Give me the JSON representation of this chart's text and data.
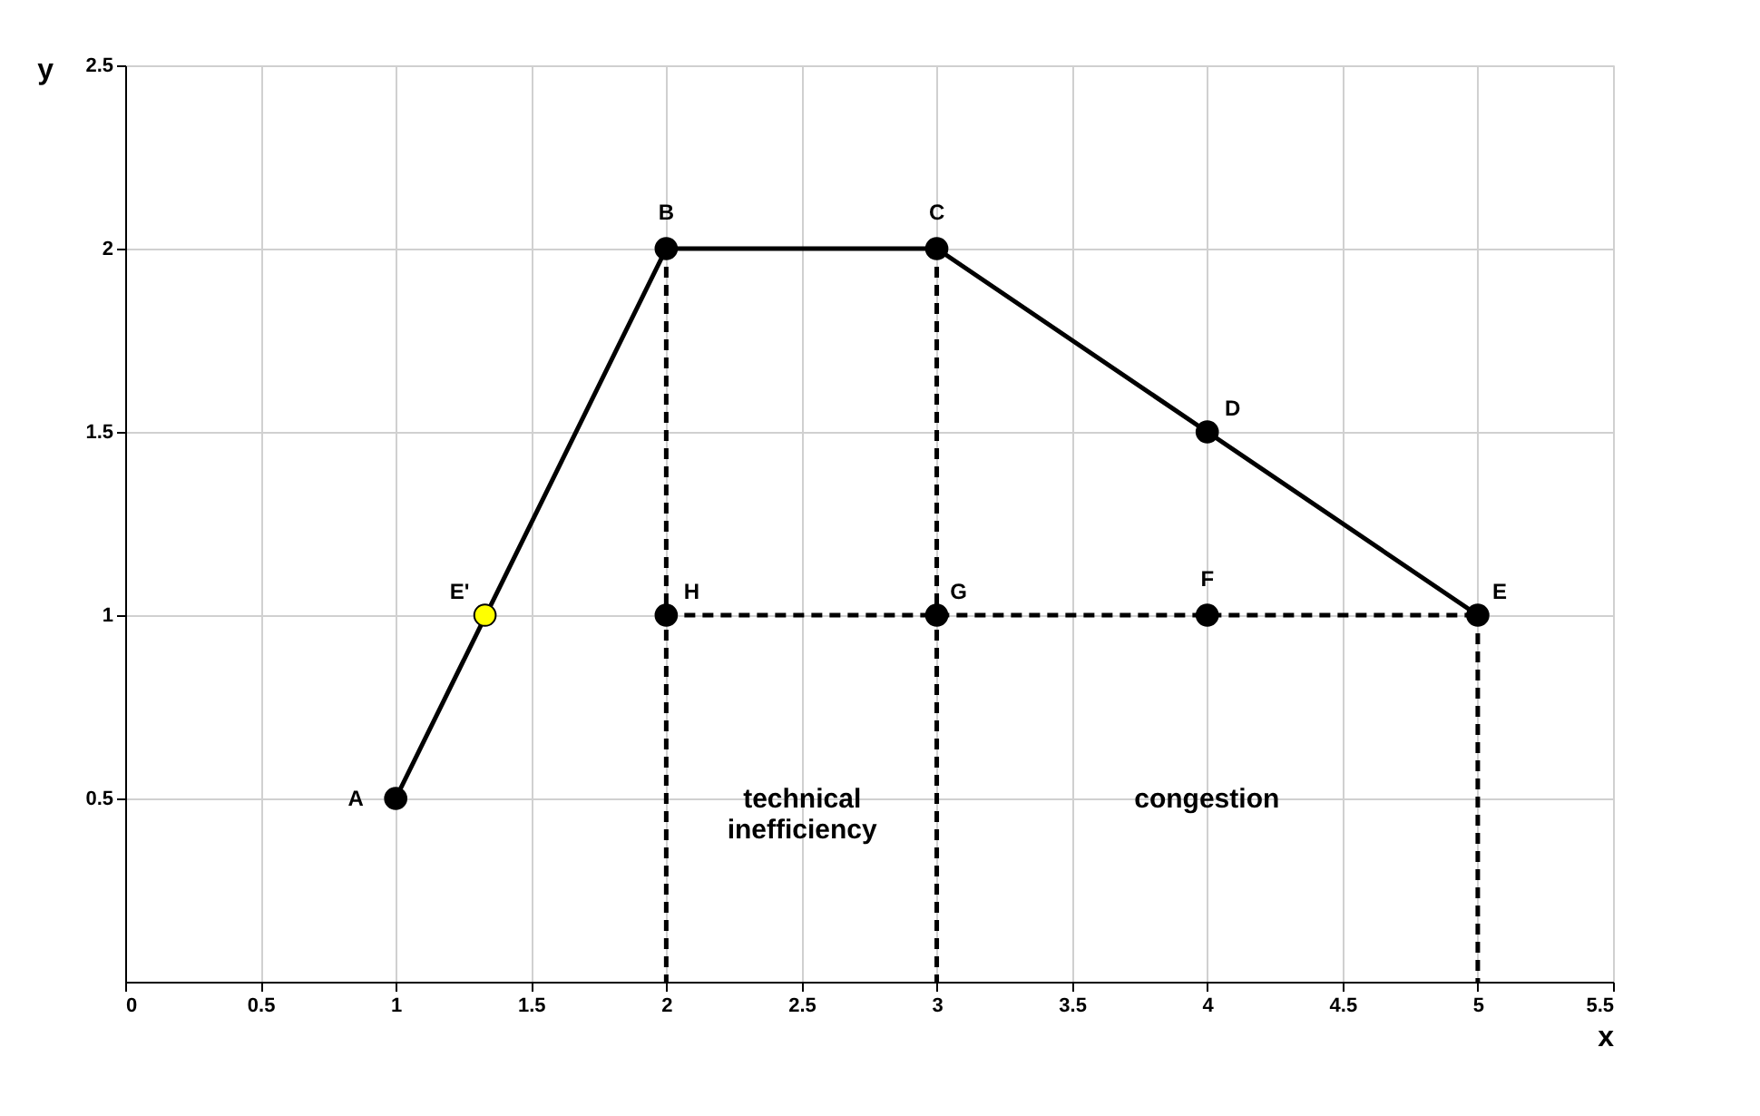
{
  "chart_data": {
    "type": "line",
    "xlabel": "x",
    "ylabel": "y",
    "xlim": [
      0,
      5.5
    ],
    "ylim": [
      0,
      2.5
    ],
    "xticks": [
      0,
      0.5,
      1,
      1.5,
      2,
      2.5,
      3,
      3.5,
      4,
      4.5,
      5,
      5.5
    ],
    "yticks": [
      0.5,
      1,
      1.5,
      2,
      2.5
    ],
    "grid": true,
    "series": [
      {
        "x": [
          1,
          2,
          3,
          4,
          5
        ],
        "values": [
          0.5,
          2,
          2,
          1.5,
          1
        ],
        "color": "#000000",
        "line_style": "solid",
        "marker": "circle"
      },
      {
        "x": [
          2,
          5
        ],
        "values": [
          1,
          1
        ],
        "color": "#000000",
        "line_style": "dashed",
        "marker": "none"
      },
      {
        "x": [
          2,
          2
        ],
        "values": [
          2,
          0
        ],
        "color": "#000000",
        "line_style": "dashed",
        "marker": "none"
      },
      {
        "x": [
          3,
          3
        ],
        "values": [
          2,
          0
        ],
        "color": "#000000",
        "line_style": "dashed",
        "marker": "none"
      },
      {
        "x": [
          5,
          5
        ],
        "values": [
          1,
          0
        ],
        "color": "#000000",
        "line_style": "dashed",
        "marker": "none"
      },
      {
        "type": "scatter",
        "x": [
          2,
          3,
          4
        ],
        "values": [
          1,
          1,
          1
        ],
        "color": "#000000",
        "marker": "circle"
      },
      {
        "type": "scatter",
        "x": [
          1.33
        ],
        "values": [
          1
        ],
        "color": "#ffff00",
        "marker": "circle"
      }
    ],
    "annotations": [
      {
        "text": "A",
        "x": 1,
        "y": 0.5
      },
      {
        "text": "B",
        "x": 2,
        "y": 2
      },
      {
        "text": "C",
        "x": 3,
        "y": 2
      },
      {
        "text": "D",
        "x": 4,
        "y": 1.5
      },
      {
        "text": "E",
        "x": 5,
        "y": 1
      },
      {
        "text": "E'",
        "x": 1.33,
        "y": 1
      },
      {
        "text": "F",
        "x": 4,
        "y": 1
      },
      {
        "text": "G",
        "x": 3,
        "y": 1
      },
      {
        "text": "H",
        "x": 2,
        "y": 1
      },
      "technical\ninefficiency",
      "congestion"
    ]
  }
}
